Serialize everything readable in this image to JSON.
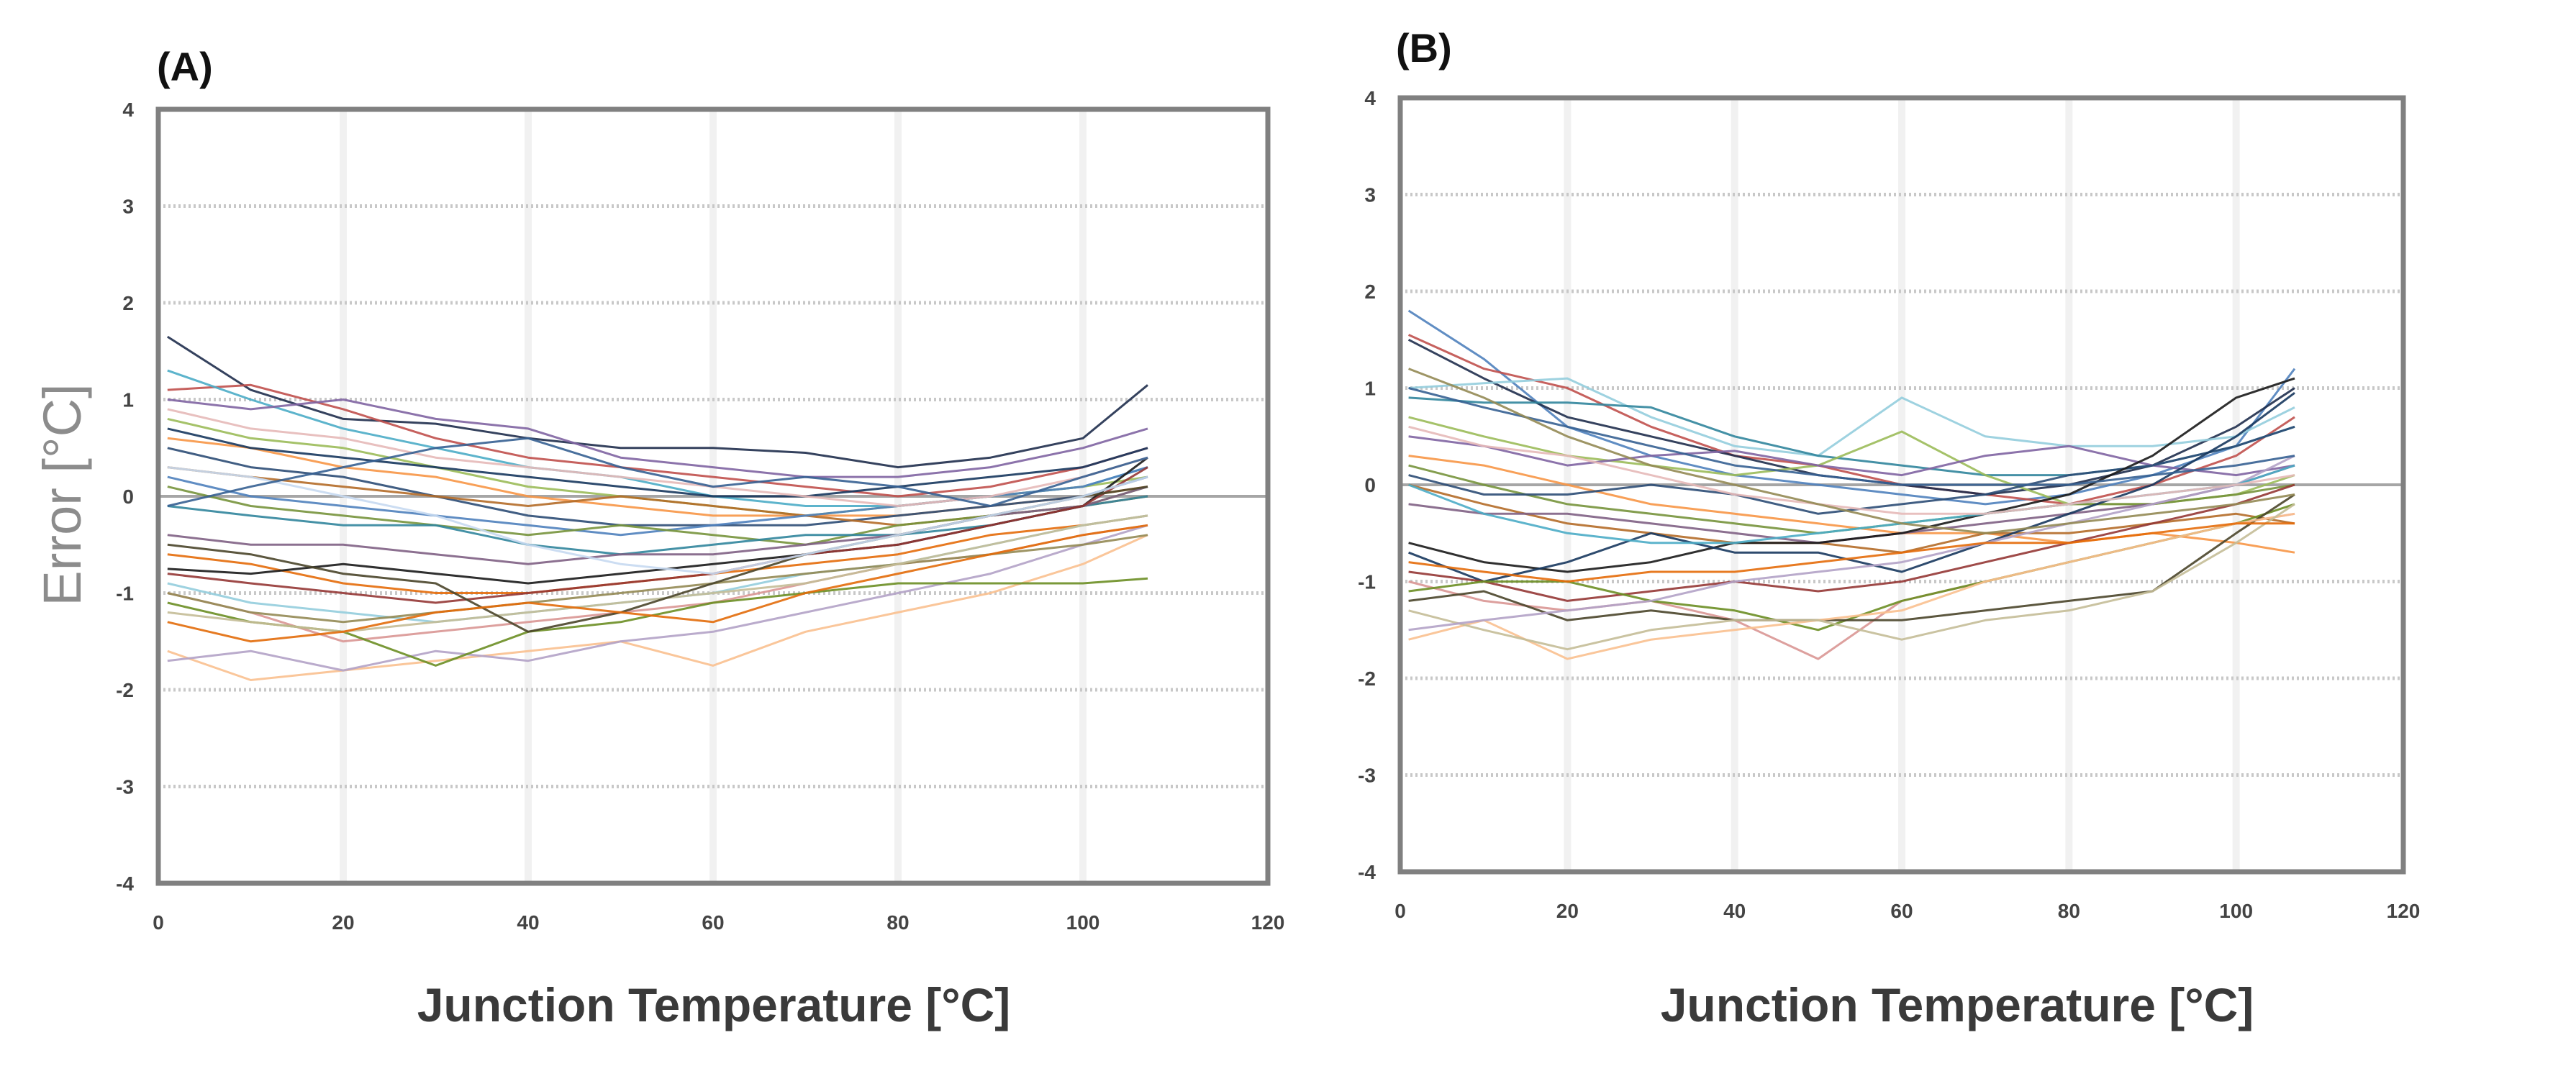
{
  "chart_data": [
    {
      "type": "line",
      "panel_label": "(A)",
      "xlabel": "Junction Temperature [°C]",
      "ylabel": "Error  [°C]",
      "xlim": [
        0,
        120
      ],
      "ylim": [
        -4,
        4
      ],
      "x_ticks": [
        "0",
        "20",
        "40",
        "60",
        "80",
        "100",
        "120"
      ],
      "y_ticks": [
        "4",
        "3",
        "2",
        "1",
        "0",
        "-1",
        "-2",
        "-3",
        "-4"
      ],
      "grid": "horizontal dotted",
      "x": [
        1,
        10,
        20,
        30,
        40,
        50,
        60,
        70,
        80,
        90,
        100,
        107
      ],
      "series": [
        {
          "color": "#1f2d4d",
          "values": [
            1.65,
            1.1,
            0.8,
            0.75,
            0.6,
            0.5,
            0.5,
            0.45,
            0.3,
            0.4,
            0.6,
            1.15
          ]
        },
        {
          "color": "#c0504d",
          "values": [
            1.1,
            1.15,
            0.9,
            0.6,
            0.4,
            0.3,
            0.2,
            0.1,
            0.0,
            0.1,
            0.3,
            0.5
          ]
        },
        {
          "color": "#4bacc6",
          "values": [
            1.3,
            1.0,
            0.7,
            0.5,
            0.3,
            0.2,
            0.0,
            -0.1,
            -0.1,
            0.0,
            0.1,
            0.3
          ]
        },
        {
          "color": "#8064a2",
          "values": [
            1.0,
            0.9,
            1.0,
            0.8,
            0.7,
            0.4,
            0.3,
            0.2,
            0.2,
            0.3,
            0.5,
            0.7
          ]
        },
        {
          "color": "#9bbb59",
          "values": [
            0.8,
            0.6,
            0.5,
            0.3,
            0.1,
            0.0,
            -0.1,
            -0.2,
            -0.1,
            0.0,
            0.1,
            0.2
          ]
        },
        {
          "color": "#f79646",
          "values": [
            0.6,
            0.5,
            0.3,
            0.2,
            0.0,
            -0.1,
            -0.2,
            -0.2,
            -0.2,
            -0.1,
            0.0,
            0.1
          ]
        },
        {
          "color": "#2c4d75",
          "values": [
            0.5,
            0.3,
            0.2,
            0.0,
            -0.2,
            -0.3,
            -0.3,
            -0.3,
            -0.2,
            -0.1,
            0.0,
            0.2
          ]
        },
        {
          "color": "#b46c28",
          "values": [
            0.3,
            0.2,
            0.1,
            0.0,
            -0.1,
            0.0,
            -0.1,
            -0.2,
            -0.3,
            -0.2,
            -0.1,
            0.0
          ]
        },
        {
          "color": "#4f81bd",
          "values": [
            0.2,
            0.0,
            -0.1,
            -0.2,
            -0.3,
            -0.4,
            -0.3,
            -0.2,
            -0.1,
            0.0,
            0.1,
            0.3
          ]
        },
        {
          "color": "#77933c",
          "values": [
            0.1,
            -0.1,
            -0.2,
            -0.3,
            -0.4,
            -0.3,
            -0.4,
            -0.5,
            -0.3,
            -0.2,
            -0.1,
            0.1
          ]
        },
        {
          "color": "#31859c",
          "values": [
            -0.1,
            -0.2,
            -0.3,
            -0.3,
            -0.5,
            -0.6,
            -0.5,
            -0.4,
            -0.4,
            -0.3,
            -0.1,
            0.0
          ]
        },
        {
          "color": "#7f6084",
          "values": [
            -0.4,
            -0.5,
            -0.5,
            -0.6,
            -0.7,
            -0.6,
            -0.6,
            -0.5,
            -0.4,
            -0.2,
            -0.1,
            0.1
          ]
        },
        {
          "color": "#e46c0a",
          "values": [
            -0.6,
            -0.7,
            -0.9,
            -1.0,
            -1.0,
            -0.9,
            -0.8,
            -0.7,
            -0.6,
            -0.4,
            -0.3,
            -0.2
          ]
        },
        {
          "color": "#1a1a1a",
          "values": [
            -0.75,
            -0.8,
            -0.7,
            -0.8,
            -0.9,
            -0.8,
            -0.7,
            -0.6,
            -0.5,
            -0.3,
            -0.1,
            0.4
          ]
        },
        {
          "color": "#953735",
          "values": [
            -0.8,
            -0.9,
            -1.0,
            -1.1,
            -1.0,
            -0.9,
            -0.8,
            -0.6,
            -0.5,
            -0.3,
            -0.1,
            0.3
          ]
        },
        {
          "color": "#93cddd",
          "values": [
            -0.9,
            -1.1,
            -1.2,
            -1.3,
            -1.2,
            -1.1,
            -1.0,
            -0.8,
            -0.7,
            -0.5,
            -0.3,
            -0.2
          ]
        },
        {
          "color": "#d99694",
          "values": [
            -1.0,
            -1.2,
            -1.5,
            -1.4,
            -1.3,
            -1.2,
            -1.1,
            -0.9,
            -0.7,
            -0.6,
            -0.4,
            -0.3
          ]
        },
        {
          "color": "#fac08f",
          "values": [
            -1.6,
            -1.9,
            -1.8,
            -1.7,
            -1.6,
            -1.5,
            -1.75,
            -1.4,
            -1.2,
            -1.0,
            -0.7,
            -0.4
          ]
        },
        {
          "color": "#b3a2c7",
          "values": [
            -1.7,
            -1.6,
            -1.8,
            -1.6,
            -1.7,
            -1.5,
            -1.4,
            -1.2,
            -1.0,
            -0.8,
            -0.5,
            -0.3
          ]
        },
        {
          "color": "#6b8e23",
          "values": [
            -1.1,
            -1.3,
            -1.4,
            -1.75,
            -1.4,
            -1.3,
            -1.1,
            -1.0,
            -0.9,
            -0.9,
            -0.9,
            -0.85
          ]
        },
        {
          "color": "#948a54",
          "values": [
            -1.0,
            -1.2,
            -1.3,
            -1.2,
            -1.1,
            -1.0,
            -0.9,
            -0.8,
            -0.7,
            -0.6,
            -0.5,
            -0.4
          ]
        },
        {
          "color": "#c4bd97",
          "values": [
            -1.2,
            -1.3,
            -1.4,
            -1.3,
            -1.2,
            -1.1,
            -1.0,
            -0.9,
            -0.7,
            -0.5,
            -0.3,
            -0.2
          ]
        },
        {
          "color": "#17375e",
          "values": [
            0.7,
            0.5,
            0.4,
            0.3,
            0.2,
            0.1,
            0.0,
            0.0,
            0.1,
            0.2,
            0.3,
            0.5
          ]
        },
        {
          "color": "#e6b9b8",
          "values": [
            0.9,
            0.7,
            0.6,
            0.4,
            0.3,
            0.2,
            0.1,
            0.0,
            -0.1,
            0.0,
            0.2,
            0.4
          ]
        },
        {
          "color": "#4a452a",
          "values": [
            -0.5,
            -0.6,
            -0.8,
            -0.9,
            -1.4,
            -1.2,
            -0.9,
            -0.6,
            -0.4,
            -0.2,
            0.0,
            0.1
          ]
        },
        {
          "color": "#c6d9f1",
          "values": [
            0.3,
            0.2,
            0.0,
            -0.2,
            -0.5,
            -0.7,
            -0.8,
            -0.6,
            -0.4,
            -0.2,
            0.0,
            0.2
          ]
        },
        {
          "color": "#366092",
          "values": [
            -0.1,
            0.1,
            0.3,
            0.5,
            0.6,
            0.3,
            0.1,
            0.2,
            0.1,
            -0.1,
            0.2,
            0.4
          ]
        },
        {
          "color": "#e26b0a",
          "values": [
            -1.3,
            -1.5,
            -1.4,
            -1.2,
            -1.1,
            -1.2,
            -1.3,
            -1.0,
            -0.8,
            -0.6,
            -0.4,
            -0.3
          ]
        }
      ]
    },
    {
      "type": "line",
      "panel_label": "(B)",
      "xlabel": "Junction Temperature [°C]",
      "xlim": [
        0,
        120
      ],
      "ylim": [
        -4,
        4
      ],
      "x_ticks": [
        "0",
        "20",
        "40",
        "60",
        "80",
        "100",
        "120"
      ],
      "y_ticks": [
        "4",
        "3",
        "2",
        "1",
        "0",
        "-1",
        "-2",
        "-3",
        "-4"
      ],
      "grid": "horizontal dotted",
      "x": [
        1,
        10,
        20,
        30,
        40,
        50,
        60,
        70,
        80,
        90,
        100,
        107
      ],
      "series": [
        {
          "color": "#4f81bd",
          "values": [
            1.8,
            1.3,
            0.6,
            0.3,
            0.1,
            0.0,
            -0.1,
            -0.2,
            -0.1,
            0.1,
            0.4,
            1.2
          ]
        },
        {
          "color": "#c0504d",
          "values": [
            1.55,
            1.2,
            1.0,
            0.6,
            0.3,
            0.2,
            0.0,
            -0.1,
            -0.2,
            0.0,
            0.3,
            0.7
          ]
        },
        {
          "color": "#1f2d4d",
          "values": [
            1.5,
            1.1,
            0.7,
            0.5,
            0.3,
            0.1,
            0.0,
            -0.1,
            0.0,
            0.2,
            0.6,
            1.0
          ]
        },
        {
          "color": "#93cddd",
          "values": [
            1.0,
            1.05,
            1.1,
            0.7,
            0.4,
            0.3,
            0.9,
            0.5,
            0.4,
            0.4,
            0.5,
            0.8
          ]
        },
        {
          "color": "#31859c",
          "values": [
            0.9,
            0.85,
            0.85,
            0.8,
            0.5,
            0.3,
            0.2,
            0.1,
            0.1,
            0.2,
            0.4,
            0.6
          ]
        },
        {
          "color": "#9bbb59",
          "values": [
            0.7,
            0.5,
            0.3,
            0.2,
            0.1,
            0.2,
            0.55,
            0.1,
            -0.2,
            -0.2,
            -0.1,
            0.1
          ]
        },
        {
          "color": "#8064a2",
          "values": [
            0.5,
            0.4,
            0.2,
            0.3,
            0.35,
            0.2,
            0.1,
            0.3,
            0.4,
            0.2,
            0.1,
            0.2
          ]
        },
        {
          "color": "#f79646",
          "values": [
            0.3,
            0.2,
            0.0,
            -0.2,
            -0.3,
            -0.4,
            -0.5,
            -0.5,
            -0.6,
            -0.5,
            -0.6,
            -0.7
          ]
        },
        {
          "color": "#77933c",
          "values": [
            0.2,
            0.0,
            -0.2,
            -0.3,
            -0.4,
            -0.5,
            -0.4,
            -0.3,
            -0.2,
            -0.2,
            -0.1,
            0.0
          ]
        },
        {
          "color": "#2c4d75",
          "values": [
            0.1,
            -0.1,
            -0.1,
            0.0,
            -0.1,
            -0.3,
            -0.2,
            -0.1,
            0.1,
            0.2,
            0.4,
            0.6
          ]
        },
        {
          "color": "#b46c28",
          "values": [
            0.0,
            -0.2,
            -0.4,
            -0.5,
            -0.6,
            -0.6,
            -0.7,
            -0.5,
            -0.5,
            -0.4,
            -0.3,
            -0.4
          ]
        },
        {
          "color": "#7f6084",
          "values": [
            -0.2,
            -0.3,
            -0.3,
            -0.4,
            -0.5,
            -0.6,
            -0.5,
            -0.4,
            -0.3,
            -0.2,
            0.0,
            0.2
          ]
        },
        {
          "color": "#1a1a1a",
          "values": [
            -0.6,
            -0.8,
            -0.9,
            -0.8,
            -0.6,
            -0.6,
            -0.5,
            -0.3,
            -0.1,
            0.3,
            0.9,
            1.1
          ]
        },
        {
          "color": "#17375e",
          "values": [
            -0.7,
            -1.0,
            -0.8,
            -0.5,
            -0.7,
            -0.7,
            -0.9,
            -0.6,
            -0.3,
            0.0,
            0.5,
            0.95
          ]
        },
        {
          "color": "#953735",
          "values": [
            -0.9,
            -1.0,
            -1.2,
            -1.1,
            -1.0,
            -1.1,
            -1.0,
            -0.8,
            -0.6,
            -0.4,
            -0.2,
            0.0
          ]
        },
        {
          "color": "#d99694",
          "values": [
            -1.0,
            -1.2,
            -1.3,
            -1.2,
            -1.4,
            -1.8,
            -1.2,
            -1.0,
            -0.8,
            -0.6,
            -0.4,
            -0.3
          ]
        },
        {
          "color": "#6b8e23",
          "values": [
            -1.1,
            -1.0,
            -1.0,
            -1.2,
            -1.3,
            -1.5,
            -1.2,
            -1.0,
            -0.8,
            -0.6,
            -0.4,
            -0.2
          ]
        },
        {
          "color": "#4a452a",
          "values": [
            -1.2,
            -1.1,
            -1.4,
            -1.3,
            -1.4,
            -1.4,
            -1.4,
            -1.3,
            -1.2,
            -1.1,
            -0.5,
            -0.1
          ]
        },
        {
          "color": "#fac08f",
          "values": [
            -1.6,
            -1.4,
            -1.8,
            -1.6,
            -1.5,
            -1.4,
            -1.3,
            -1.0,
            -0.8,
            -0.6,
            -0.4,
            -0.3
          ]
        },
        {
          "color": "#c4bd97",
          "values": [
            -1.3,
            -1.5,
            -1.7,
            -1.5,
            -1.4,
            -1.4,
            -1.6,
            -1.4,
            -1.3,
            -1.1,
            -0.6,
            -0.2
          ]
        },
        {
          "color": "#b3a2c7",
          "values": [
            -1.5,
            -1.4,
            -1.3,
            -1.2,
            -1.0,
            -0.9,
            -0.8,
            -0.6,
            -0.4,
            -0.2,
            0.0,
            0.3
          ]
        },
        {
          "color": "#4bacc6",
          "values": [
            0.0,
            -0.3,
            -0.5,
            -0.6,
            -0.6,
            -0.5,
            -0.4,
            -0.3,
            -0.2,
            -0.1,
            0.0,
            0.2
          ]
        },
        {
          "color": "#e46c0a",
          "values": [
            -0.8,
            -0.9,
            -1.0,
            -0.9,
            -0.9,
            -0.8,
            -0.7,
            -0.6,
            -0.6,
            -0.5,
            -0.4,
            -0.4
          ]
        },
        {
          "color": "#366092",
          "values": [
            1.0,
            0.8,
            0.6,
            0.4,
            0.2,
            0.1,
            0.0,
            0.0,
            0.0,
            0.1,
            0.2,
            0.3
          ]
        },
        {
          "color": "#e6b9b8",
          "values": [
            0.6,
            0.4,
            0.3,
            0.1,
            -0.1,
            -0.2,
            -0.3,
            -0.3,
            -0.2,
            -0.1,
            0.0,
            0.1
          ]
        },
        {
          "color": "#948a54",
          "values": [
            1.2,
            0.9,
            0.5,
            0.2,
            0.0,
            -0.2,
            -0.4,
            -0.5,
            -0.4,
            -0.3,
            -0.2,
            -0.1
          ]
        }
      ]
    }
  ]
}
